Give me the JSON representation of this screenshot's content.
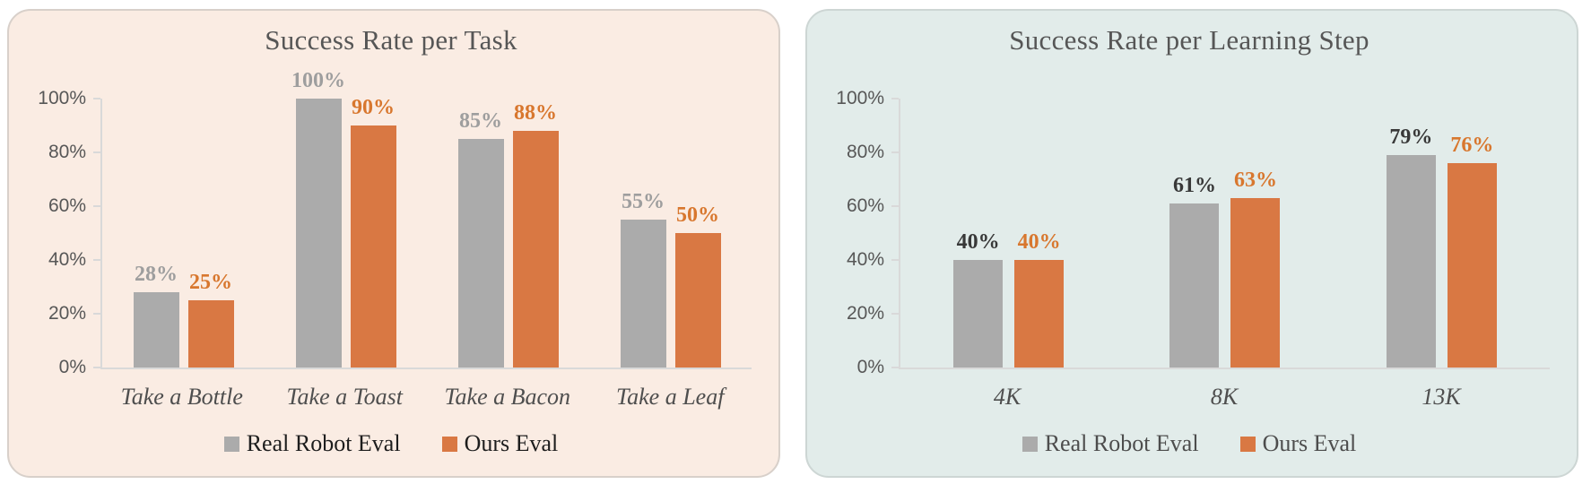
{
  "chart_data": [
    {
      "type": "bar",
      "title": "Success Rate per Task",
      "categories": [
        "Take a Bottle",
        "Take a Toast",
        "Take a Bacon",
        "Take a Leaf"
      ],
      "series": [
        {
          "name": "Real Robot Eval",
          "values": [
            28,
            100,
            85,
            55
          ],
          "data_labels": [
            "28%",
            "100%",
            "85%",
            "55%"
          ],
          "bar_color": "#ABABAB",
          "label_color": "#9E9E9E"
        },
        {
          "name": "Ours Eval",
          "values": [
            25,
            90,
            88,
            50
          ],
          "data_labels": [
            "25%",
            "90%",
            "88%",
            "50%"
          ],
          "bar_color": "#D97843",
          "label_color": "#D8772E"
        }
      ],
      "y_axis": {
        "tick_labels": [
          "100%",
          "80%",
          "60%",
          "40%",
          "20%",
          "0%"
        ],
        "min": 0,
        "max": 100,
        "grid": false
      },
      "legend": {
        "position": "bottom",
        "text_color": "#1D1D1D"
      },
      "panel": {
        "background": "#FAECE3",
        "border_color": "#D8D0CA"
      }
    },
    {
      "type": "bar",
      "title": "Success Rate per Learning Step",
      "categories": [
        "4K",
        "8K",
        "13K"
      ],
      "series": [
        {
          "name": "Real Robot Eval",
          "values": [
            40,
            61,
            79
          ],
          "data_labels": [
            "40%",
            "61%",
            "79%"
          ],
          "bar_color": "#ABABAB",
          "label_color": "#383838"
        },
        {
          "name": "Ours Eval",
          "values": [
            40,
            63,
            76
          ],
          "data_labels": [
            "40%",
            "63%",
            "76%"
          ],
          "bar_color": "#D97843",
          "label_color": "#D8772E"
        }
      ],
      "y_axis": {
        "tick_labels": [
          "100%",
          "80%",
          "60%",
          "40%",
          "20%",
          "0%"
        ],
        "min": 0,
        "max": 100,
        "grid": false
      },
      "legend": {
        "position": "bottom",
        "text_color": "#4D4D4D"
      },
      "panel": {
        "background": "#E2ECEA",
        "border_color": "#CDD6D4"
      }
    }
  ]
}
